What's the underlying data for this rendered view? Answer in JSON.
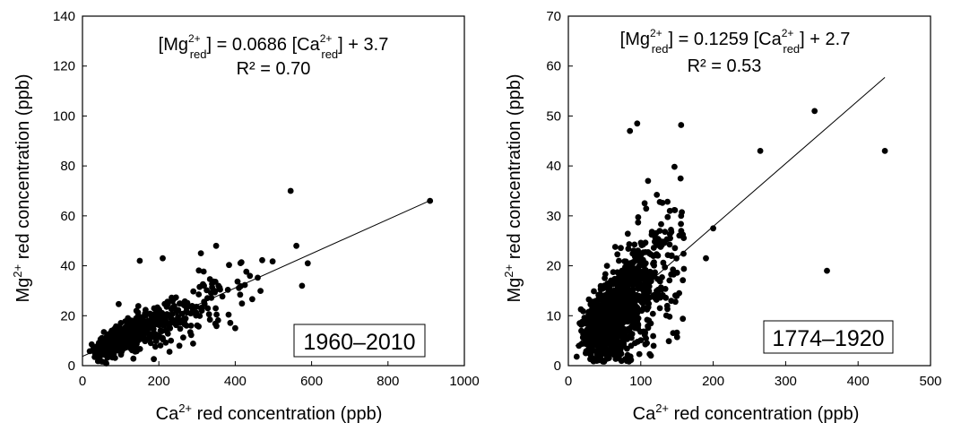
{
  "chart_data": [
    {
      "type": "scatter",
      "xlabel": {
        "base": "Ca",
        "sup": "2+",
        "rest": " red concentration (ppb)"
      },
      "ylabel": {
        "base": "Mg",
        "sup": "2+",
        "rest": " red concentration (ppb)"
      },
      "xlim": [
        0,
        1000
      ],
      "ylim": [
        0,
        140
      ],
      "xticks": [
        0,
        200,
        400,
        600,
        800,
        1000
      ],
      "yticks": [
        0,
        20,
        40,
        60,
        80,
        100,
        120,
        140
      ],
      "equation": {
        "p1": "[Mg",
        "s1": "2+",
        "u1": "red",
        "p2": "] = 0.0686 [Ca",
        "s2": "2+",
        "u2": "red",
        "p3": "] + 3.7"
      },
      "r2": "R² = 0.70",
      "period": "1960–2010",
      "trendline": {
        "slope": 0.0686,
        "intercept": 3.7,
        "x_range": [
          0,
          910
        ]
      },
      "points_summary": {
        "n": 650,
        "bulk_x_range": [
          10,
          500
        ],
        "outliers": [
          [
            545,
            70
          ],
          [
            910,
            66
          ],
          [
            560,
            48
          ],
          [
            590,
            41
          ],
          [
            575,
            32
          ],
          [
            400,
            15
          ],
          [
            310,
            45
          ],
          [
            150,
            42
          ],
          [
            210,
            43
          ],
          [
            350,
            48
          ]
        ]
      }
    },
    {
      "type": "scatter",
      "xlabel": {
        "base": "Ca",
        "sup": "2+",
        "rest": " red concentration (ppb)"
      },
      "ylabel": {
        "base": "Mg",
        "sup": "2+",
        "rest": " red concentration (ppb)"
      },
      "xlim": [
        0,
        500
      ],
      "ylim": [
        0,
        70
      ],
      "xticks": [
        0,
        100,
        200,
        300,
        400,
        500
      ],
      "yticks": [
        0,
        10,
        20,
        30,
        40,
        50,
        60,
        70
      ],
      "equation": {
        "p1": "[Mg",
        "s1": "2+",
        "u1": "red",
        "p2": "]  = 0.1259 [Ca",
        "s2": "2+",
        "u2": "red",
        "p3": "] + 2.7"
      },
      "r2": "R² = 0.53",
      "period": "1774–1920",
      "trendline": {
        "slope": 0.1259,
        "intercept": 2.7,
        "x_range": [
          10,
          437
        ]
      },
      "points_summary": {
        "n": 1100,
        "bulk_x_range": [
          5,
          160
        ],
        "outliers": [
          [
            340,
            51
          ],
          [
            437,
            43
          ],
          [
            265,
            43
          ],
          [
            357,
            19
          ],
          [
            95,
            48.5
          ],
          [
            85,
            47
          ],
          [
            200,
            27.5
          ],
          [
            190,
            21.5
          ],
          [
            155,
            37.5
          ],
          [
            110,
            37
          ]
        ]
      }
    }
  ]
}
